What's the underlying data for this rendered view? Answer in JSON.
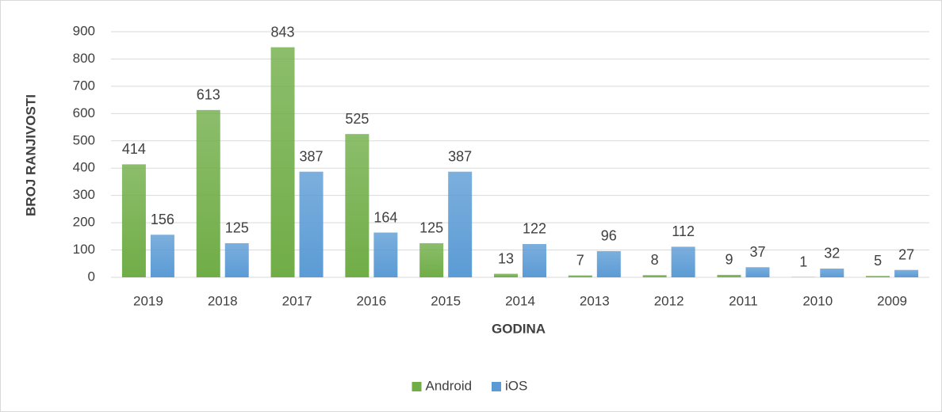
{
  "chart_data": {
    "type": "bar",
    "categories": [
      "2019",
      "2018",
      "2017",
      "2016",
      "2015",
      "2014",
      "2013",
      "2012",
      "2011",
      "2010",
      "2009"
    ],
    "series": [
      {
        "name": "Android",
        "color": "#70ad47",
        "values": [
          414,
          613,
          843,
          525,
          125,
          13,
          7,
          8,
          9,
          1,
          5
        ]
      },
      {
        "name": "iOS",
        "color": "#5b9bd5",
        "values": [
          156,
          125,
          387,
          164,
          387,
          122,
          96,
          112,
          37,
          32,
          27
        ]
      }
    ],
    "x_label": "GODINA",
    "y_label": "BROJ RANJIVOSTI",
    "ylim": [
      0,
      900
    ],
    "yticks": [
      0,
      100,
      200,
      300,
      400,
      500,
      600,
      700,
      800,
      900
    ],
    "grid": true,
    "legend": "bottom"
  }
}
